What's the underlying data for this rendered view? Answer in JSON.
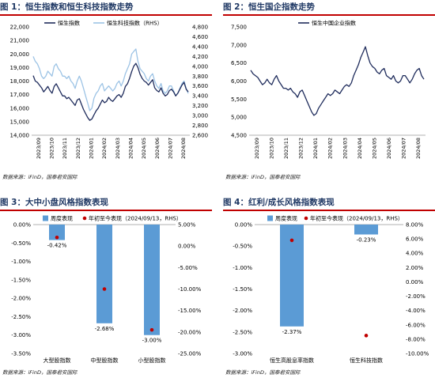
{
  "sources": {
    "p1": "数据来源：iFinD，国泰君安国际",
    "p2": "数据来源：iFinD，国泰君安国际",
    "p3": "数据来源：iFinD，国泰君安国际",
    "p4": "数据来源：iFinD，国泰君安国际"
  },
  "chart_data": [
    {
      "id": "p1",
      "type": "line",
      "title": "图 1：恒生指数和恒生科技指数走势",
      "xlabel": "",
      "ylabel": "",
      "x_ticks": [
        "2023/09",
        "2023/10",
        "2023/11",
        "2023/12",
        "2024/01",
        "2024/02",
        "2024/03",
        "2024/04",
        "2024/05",
        "2024/06",
        "2024/07",
        "2024/08"
      ],
      "ylim": [
        14000,
        22000
      ],
      "yticks": [
        14000,
        15000,
        16000,
        17000,
        18000,
        19000,
        20000,
        21000,
        22000
      ],
      "ytick_labels": [
        "14,000",
        "15,000",
        "16,000",
        "17,000",
        "18,000",
        "19,000",
        "20,000",
        "21,000",
        "22,000"
      ],
      "y2lim": [
        2600,
        4800
      ],
      "y2ticks": [
        2600,
        2800,
        3000,
        3200,
        3400,
        3600,
        3800,
        4000,
        4200,
        4400,
        4600,
        4800
      ],
      "y2tick_labels": [
        "2,600",
        "2,800",
        "3,000",
        "3,200",
        "3,400",
        "3,600",
        "3,800",
        "4,000",
        "4,200",
        "4,400",
        "4,600",
        "4,800"
      ],
      "legend": "top",
      "grid": false,
      "series": [
        {
          "name": "恒生指数",
          "axis": "left",
          "color": "#1f2c5c",
          "values": [
            18400,
            18000,
            17900,
            17700,
            17500,
            17200,
            17400,
            17600,
            17300,
            17100,
            17600,
            17800,
            17500,
            17200,
            16900,
            16900,
            16700,
            16800,
            16600,
            16400,
            16200,
            16600,
            16700,
            16300,
            15900,
            15600,
            15300,
            15100,
            15200,
            15500,
            15800,
            16000,
            16300,
            16600,
            16400,
            16500,
            16800,
            16600,
            16500,
            16700,
            16900,
            17000,
            16800,
            17100,
            17600,
            17800,
            18200,
            18700,
            19100,
            19300,
            19000,
            18500,
            18200,
            18000,
            17900,
            17700,
            17900,
            18100,
            17500,
            17300,
            17200,
            17500,
            17100,
            16900,
            17000,
            17300,
            17400,
            17200,
            16900,
            17100,
            17400,
            17700,
            17900,
            17400,
            17200
          ]
        },
        {
          "name": "恒生科技指数（RHS）",
          "axis": "right",
          "color": "#9cc3e5",
          "values": [
            4200,
            4100,
            4050,
            3950,
            3800,
            3750,
            3800,
            3900,
            3850,
            3800,
            4000,
            4050,
            3950,
            3900,
            3800,
            3800,
            3750,
            3800,
            3700,
            3650,
            3550,
            3700,
            3800,
            3700,
            3550,
            3400,
            3250,
            3100,
            3150,
            3350,
            3450,
            3500,
            3600,
            3650,
            3500,
            3550,
            3600,
            3550,
            3500,
            3550,
            3650,
            3700,
            3600,
            3700,
            3850,
            3950,
            4050,
            4250,
            4300,
            4350,
            4100,
            3950,
            3900,
            3850,
            3750,
            3700,
            3800,
            3850,
            3700,
            3600,
            3550,
            3650,
            3500,
            3450,
            3500,
            3600,
            3600,
            3500,
            3400,
            3450,
            3550,
            3650,
            3700,
            3550,
            3450
          ]
        }
      ]
    },
    {
      "id": "p2",
      "type": "line",
      "title": "图 2：恒生国企指数走势",
      "xlabel": "",
      "ylabel": "",
      "x_ticks": [
        "2023/09",
        "2023/10",
        "2023/11",
        "2023/12",
        "2024/01",
        "2024/02",
        "2024/03",
        "2024/04",
        "2024/05",
        "2024/06",
        "2024/07",
        "2024/08"
      ],
      "ylim": [
        4500,
        7500
      ],
      "yticks": [
        4500,
        5000,
        5500,
        6000,
        6500,
        7000,
        7500
      ],
      "ytick_labels": [
        "4,500",
        "5,000",
        "5,500",
        "6,000",
        "6,500",
        "7,000",
        "7,500"
      ],
      "legend": "top",
      "grid": false,
      "series": [
        {
          "name": "恒生中国企业指数",
          "color": "#1f2c5c",
          "values": [
            6300,
            6200,
            6150,
            6100,
            6000,
            5900,
            5950,
            6050,
            5950,
            5900,
            6050,
            6150,
            6000,
            5900,
            5800,
            5800,
            5750,
            5800,
            5700,
            5650,
            5550,
            5700,
            5750,
            5600,
            5450,
            5300,
            5150,
            5050,
            5100,
            5250,
            5350,
            5450,
            5550,
            5650,
            5600,
            5650,
            5750,
            5700,
            5650,
            5750,
            5850,
            5900,
            5850,
            5950,
            6150,
            6300,
            6450,
            6650,
            6800,
            6950,
            6700,
            6500,
            6400,
            6350,
            6250,
            6200,
            6300,
            6350,
            6150,
            6100,
            6050,
            6150,
            6000,
            5950,
            6000,
            6150,
            6150,
            6050,
            5950,
            6050,
            6200,
            6300,
            6350,
            6150,
            6050
          ]
        }
      ]
    },
    {
      "id": "p3",
      "type": "bar",
      "title": "图 3：大中小盘风格指数表现",
      "categories": [
        "大型股指数",
        "中型股指数",
        "小型股指数"
      ],
      "ylim": [
        -3.5,
        0
      ],
      "yticks": [
        0,
        -0.5,
        -1,
        -1.5,
        -2,
        -2.5,
        -3,
        -3.5
      ],
      "ytick_labels": [
        "0.00%",
        "-0.50%",
        "-1.00%",
        "-1.50%",
        "-2.00%",
        "-2.50%",
        "-3.00%",
        "-3.50%"
      ],
      "y2lim": [
        -25,
        5
      ],
      "y2ticks": [
        5,
        0,
        -5,
        -10,
        -15,
        -20,
        -25
      ],
      "y2tick_labels": [
        "5.00%",
        "0.00%",
        "-5.00%",
        "-10.00%",
        "-15.00%",
        "-20.00%",
        "-25.00%"
      ],
      "legend": "top",
      "series": [
        {
          "name": "周度表现",
          "axis": "left",
          "color": "#5b9bd5",
          "values": [
            -0.42,
            -2.68,
            -3.0
          ],
          "labels": [
            "-0.42%",
            "-2.68%",
            "-3.00%"
          ]
        },
        {
          "name": "年初至今表现（2024/09/13，RHS）",
          "axis": "right",
          "color": "#c00000",
          "marker": "dot",
          "values": [
            2.0,
            -10.0,
            -19.5
          ]
        }
      ]
    },
    {
      "id": "p4",
      "type": "bar",
      "title": "图 4：红利/成长风格指数表现",
      "categories": [
        "恒生高股息率指数",
        "恒生科技指数"
      ],
      "ylim": [
        -3.0,
        0
      ],
      "yticks": [
        0,
        -0.5,
        -1,
        -1.5,
        -2,
        -2.5,
        -3
      ],
      "ytick_labels": [
        "0.00%",
        "-0.50%",
        "-1.00%",
        "-1.50%",
        "-2.00%",
        "-2.50%",
        "-3.00%"
      ],
      "y2lim": [
        -10,
        8
      ],
      "y2ticks": [
        8,
        6,
        4,
        2,
        0,
        -2,
        -4,
        -6,
        -8,
        -10
      ],
      "y2tick_labels": [
        "8.00%",
        "6.00%",
        "4.00%",
        "2.00%",
        "0.00%",
        "-2.00%",
        "-4.00%",
        "-6.00%",
        "-8.00%",
        "-10.00%"
      ],
      "legend": "top",
      "series": [
        {
          "name": "周度表现",
          "axis": "left",
          "color": "#5b9bd5",
          "values": [
            -2.37,
            -0.23
          ],
          "labels": [
            "-2.37%",
            "-0.23%"
          ]
        },
        {
          "name": "年初至今表现（2024/09/13，RHS）",
          "axis": "right",
          "color": "#c00000",
          "marker": "dot",
          "values": [
            5.8,
            -7.5
          ]
        }
      ]
    }
  ]
}
